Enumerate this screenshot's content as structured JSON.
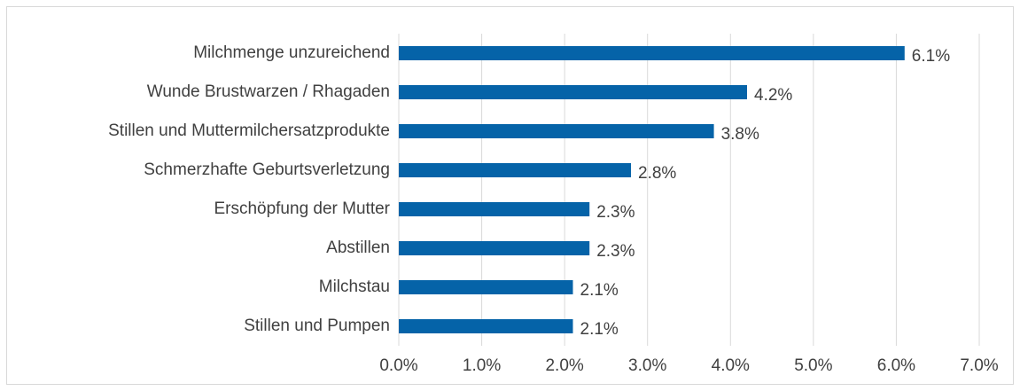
{
  "chart_data": {
    "type": "bar",
    "orientation": "horizontal",
    "categories": [
      "Milchmenge unzureichend",
      "Wunde Brustwarzen / Rhagaden",
      "Stillen und Muttermilchersatzprodukte",
      "Schmerzhafte Geburtsverletzung",
      "Erschöpfung der Mutter",
      "Abstillen",
      "Milchstau",
      "Stillen und Pumpen"
    ],
    "values": [
      6.1,
      4.2,
      3.8,
      2.8,
      2.3,
      2.3,
      2.1,
      2.1
    ],
    "value_labels": [
      "6.1%",
      "4.2%",
      "3.8%",
      "2.8%",
      "2.3%",
      "2.3%",
      "2.1%",
      "2.1%"
    ],
    "color": "#0563a8",
    "xlim": [
      0,
      7
    ],
    "xticks": [
      {
        "value": 0,
        "label": "0.0%"
      },
      {
        "value": 1,
        "label": "1.0%"
      },
      {
        "value": 2,
        "label": "2.0%"
      },
      {
        "value": 3,
        "label": "3.0%"
      },
      {
        "value": 4,
        "label": "4.0%"
      },
      {
        "value": 5,
        "label": "5.0%"
      },
      {
        "value": 6,
        "label": "6.0%"
      },
      {
        "value": 7,
        "label": "7.0%"
      }
    ],
    "grid": true
  }
}
